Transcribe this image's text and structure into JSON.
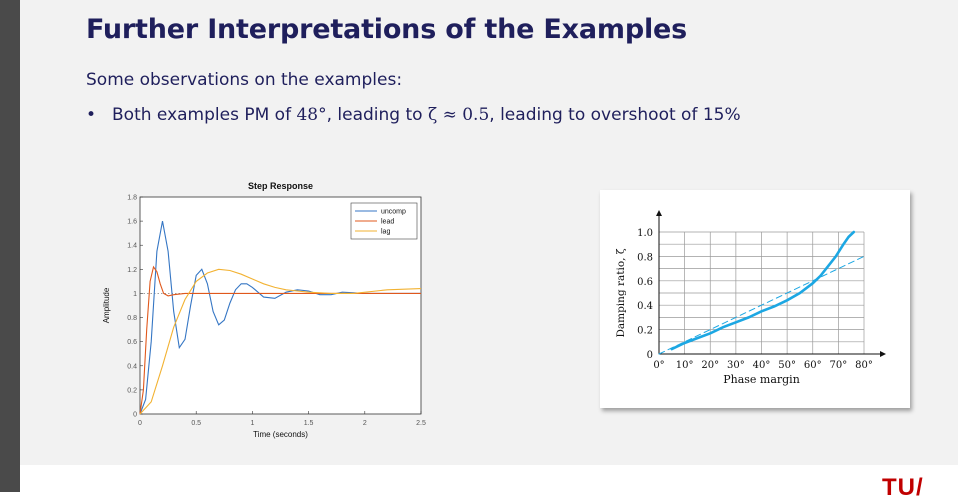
{
  "slide": {
    "title": "Further Interpretations of the Examples",
    "intro": "Some observations on the examples:",
    "bullet": {
      "marker": "•",
      "part1": "Both examples PM of ",
      "pm_math": "48°",
      "part2": ", leading to ",
      "zeta_math": "ζ ≈ 0.5",
      "part3": ", leading to overshoot of 15%"
    },
    "logo_text": "TU/"
  },
  "chart_data": [
    {
      "type": "line",
      "title": "Step Response",
      "xlabel": "Time (seconds)",
      "ylabel": "Amplitude",
      "xlim": [
        0,
        2.5
      ],
      "ylim": [
        0,
        1.8
      ],
      "xticks": [
        "0",
        "0.5",
        "1",
        "1.5",
        "2",
        "2.5"
      ],
      "yticks": [
        "0",
        "0.2",
        "0.4",
        "0.6",
        "0.8",
        "1",
        "1.2",
        "1.4",
        "1.6",
        "1.8"
      ],
      "legend_position": "top-right",
      "grid": false,
      "series": [
        {
          "name": "uncomp",
          "color": "#3576c4",
          "x": [
            0,
            0.05,
            0.1,
            0.15,
            0.2,
            0.25,
            0.3,
            0.35,
            0.4,
            0.45,
            0.5,
            0.55,
            0.6,
            0.65,
            0.7,
            0.75,
            0.8,
            0.85,
            0.9,
            0.95,
            1.0,
            1.1,
            1.2,
            1.3,
            1.4,
            1.5,
            1.6,
            1.7,
            1.8,
            2.0,
            2.2,
            2.5
          ],
          "y": [
            0,
            0.12,
            0.6,
            1.35,
            1.6,
            1.35,
            0.85,
            0.55,
            0.62,
            0.9,
            1.15,
            1.2,
            1.08,
            0.85,
            0.74,
            0.78,
            0.92,
            1.03,
            1.08,
            1.08,
            1.05,
            0.97,
            0.96,
            1.01,
            1.03,
            1.02,
            0.99,
            0.99,
            1.01,
            1.0,
            1.0,
            1.0
          ]
        },
        {
          "name": "lead",
          "color": "#e0581c",
          "x": [
            0,
            0.03,
            0.06,
            0.09,
            0.12,
            0.15,
            0.18,
            0.21,
            0.25,
            0.3,
            0.4,
            0.5,
            1.0,
            1.5,
            2.0,
            2.5
          ],
          "y": [
            0,
            0.2,
            0.7,
            1.1,
            1.22,
            1.18,
            1.08,
            1.0,
            0.98,
            0.99,
            1.0,
            1.0,
            1.0,
            1.0,
            1.0,
            1.0
          ]
        },
        {
          "name": "lag",
          "color": "#f2b232",
          "x": [
            0,
            0.1,
            0.2,
            0.3,
            0.4,
            0.5,
            0.6,
            0.7,
            0.8,
            0.9,
            1.0,
            1.1,
            1.2,
            1.3,
            1.4,
            1.5,
            1.7,
            1.9,
            2.2,
            2.5
          ],
          "y": [
            0,
            0.1,
            0.4,
            0.72,
            0.95,
            1.1,
            1.17,
            1.2,
            1.19,
            1.16,
            1.12,
            1.08,
            1.05,
            1.03,
            1.02,
            1.01,
            1.0,
            1.0,
            1.03,
            1.04
          ]
        }
      ]
    },
    {
      "type": "line",
      "title": "",
      "xlabel": "Phase margin",
      "ylabel": "Damping ratio, ζ",
      "xlim": [
        0,
        80
      ],
      "ylim": [
        0,
        1.0
      ],
      "xticks": [
        "0°",
        "10°",
        "20°",
        "30°",
        "40°",
        "50°",
        "60°",
        "70°",
        "80°"
      ],
      "yticks": [
        "0",
        "0.2",
        "0.4",
        "0.6",
        "0.8",
        "1.0"
      ],
      "grid": true,
      "series": [
        {
          "name": "",
          "color": "#1ca7e3",
          "style": "solid",
          "x": [
            5,
            10,
            15,
            20,
            25,
            30,
            35,
            40,
            45,
            50,
            55,
            60,
            63,
            66,
            69,
            72,
            74,
            76
          ],
          "y": [
            0.04,
            0.09,
            0.13,
            0.17,
            0.22,
            0.26,
            0.3,
            0.35,
            0.39,
            0.44,
            0.5,
            0.58,
            0.64,
            0.72,
            0.8,
            0.9,
            0.96,
            1.0
          ]
        },
        {
          "name": "",
          "color": "#1ca7e3",
          "style": "dashed",
          "x": [
            0,
            80
          ],
          "y": [
            0,
            0.8
          ]
        }
      ]
    }
  ]
}
